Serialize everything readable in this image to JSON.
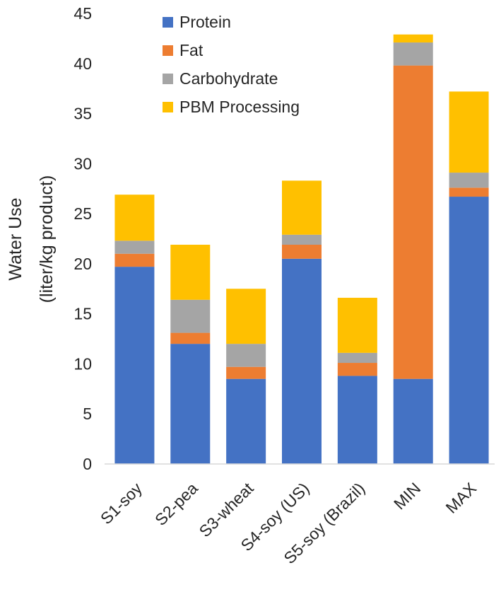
{
  "chart_data": {
    "type": "bar",
    "stacked": true,
    "categories": [
      "S1-soy",
      "S2-pea",
      "S3-wheat",
      "S4-soy (US)",
      "S5-soy (Brazil)",
      "MIN",
      "MAX"
    ],
    "series": [
      {
        "name": "Protein",
        "color": "#4472C4",
        "values": [
          19.7,
          12.0,
          8.5,
          20.5,
          8.8,
          8.5,
          26.7
        ]
      },
      {
        "name": "Fat",
        "color": "#ED7D31",
        "values": [
          1.3,
          1.1,
          1.2,
          1.4,
          1.3,
          31.3,
          0.9
        ]
      },
      {
        "name": "Carbohydrate",
        "color": "#A5A5A5",
        "values": [
          1.3,
          3.3,
          2.3,
          1.0,
          1.0,
          2.3,
          1.5
        ]
      },
      {
        "name": "PBM Processing",
        "color": "#FFC000",
        "values": [
          4.6,
          5.5,
          5.5,
          5.4,
          5.5,
          0.8,
          8.1
        ]
      }
    ],
    "ylabel_lines": [
      "Water Use",
      "(liter/kg product)"
    ],
    "xlabel": "",
    "ylim": [
      0,
      45
    ],
    "yticks": [
      0,
      5,
      10,
      15,
      20,
      25,
      30,
      35,
      40,
      45
    ],
    "grid": false,
    "legend_position": "top-left"
  }
}
